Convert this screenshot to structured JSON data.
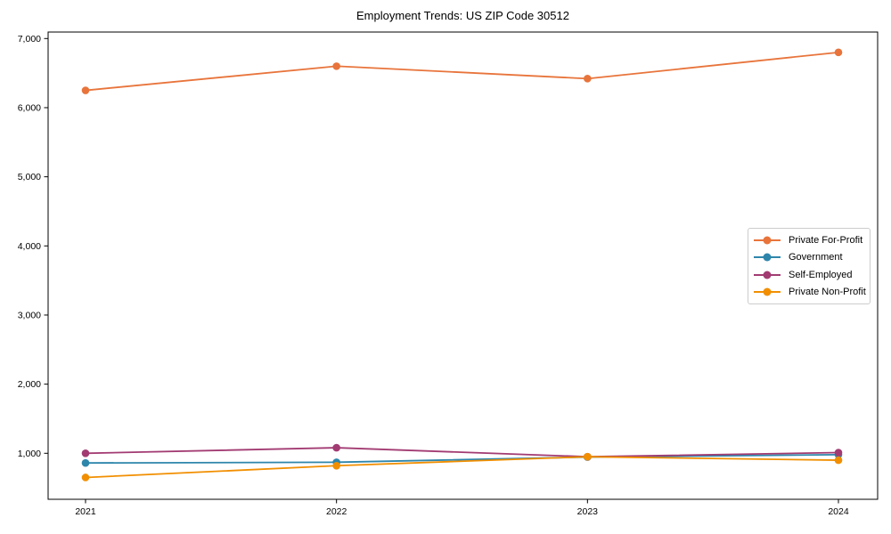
{
  "chart_data": {
    "type": "line",
    "title": "Employment Trends: US ZIP Code 30512",
    "x": [
      2021,
      2022,
      2023,
      2024
    ],
    "xtick_labels": [
      "2021",
      "2022",
      "2023",
      "2024"
    ],
    "series": [
      {
        "name": "Private For-Profit",
        "color": "#E8743B",
        "values": [
          6250,
          6600,
          6420,
          6800
        ]
      },
      {
        "name": "Government",
        "color": "#2E86AB",
        "values": [
          860,
          870,
          945,
          980
        ]
      },
      {
        "name": "Self-Employed",
        "color": "#A23B72",
        "values": [
          1000,
          1080,
          950,
          1010
        ]
      },
      {
        "name": "Private Non-Profit",
        "color": "#F18F01",
        "values": [
          650,
          820,
          950,
          900
        ]
      }
    ],
    "yticks": [
      1000,
      2000,
      3000,
      4000,
      5000,
      6000,
      7000
    ],
    "ytick_labels": [
      "1,000",
      "2,000",
      "3,000",
      "4,000",
      "5,000",
      "6,000",
      "7,000"
    ],
    "ylim_approx": [
      320,
      7090
    ],
    "grid": false,
    "legend_position": "center-right",
    "marker": "circle",
    "frame_color": "#000000",
    "background_color": "#ffffff"
  }
}
